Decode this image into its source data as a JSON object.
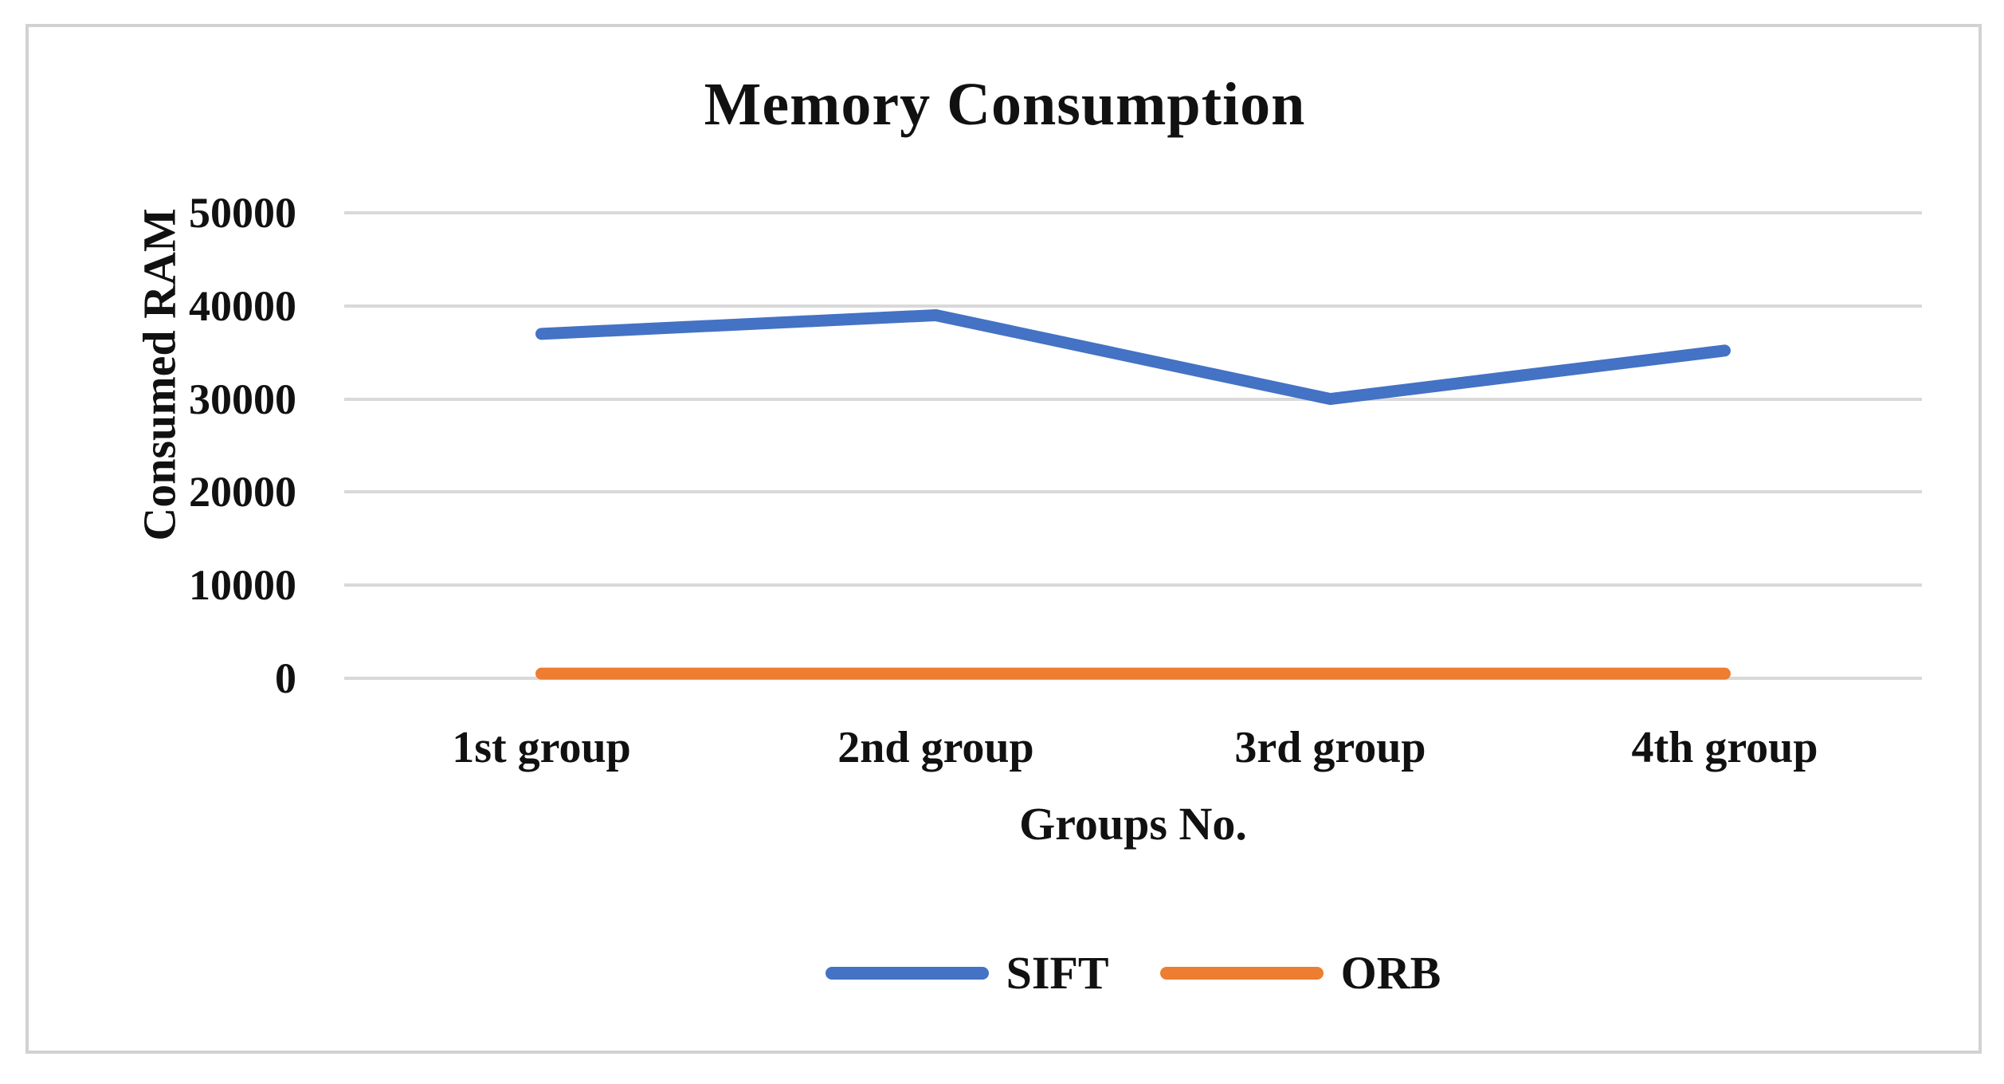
{
  "figure": {
    "border_color": "#d2d2d2",
    "background_color": "#ffffff",
    "text_color": "#111111"
  },
  "chart_data": {
    "type": "line",
    "title": "Memory Consumption",
    "xlabel": "Groups No.",
    "ylabel": "Consumed RAM",
    "categories": [
      "1st group",
      "2nd group",
      "3rd group",
      "4th group"
    ],
    "series": [
      {
        "name": "SIFT",
        "color": "#4472C4",
        "values": [
          37000,
          39000,
          30000,
          35200
        ]
      },
      {
        "name": "ORB",
        "color": "#ED7D31",
        "values": [
          500,
          500,
          500,
          500
        ]
      }
    ],
    "ylim": [
      0,
      50000
    ],
    "yticks": [
      0,
      10000,
      20000,
      30000,
      40000,
      50000
    ],
    "ytick_labels": [
      "0",
      "10000",
      "20000",
      "30000",
      "40000",
      "50000"
    ],
    "grid": "horizontal",
    "gridline_color": "#D9D9D9",
    "legend_position": "bottom",
    "legend_entries": [
      "SIFT",
      "ORB"
    ]
  }
}
